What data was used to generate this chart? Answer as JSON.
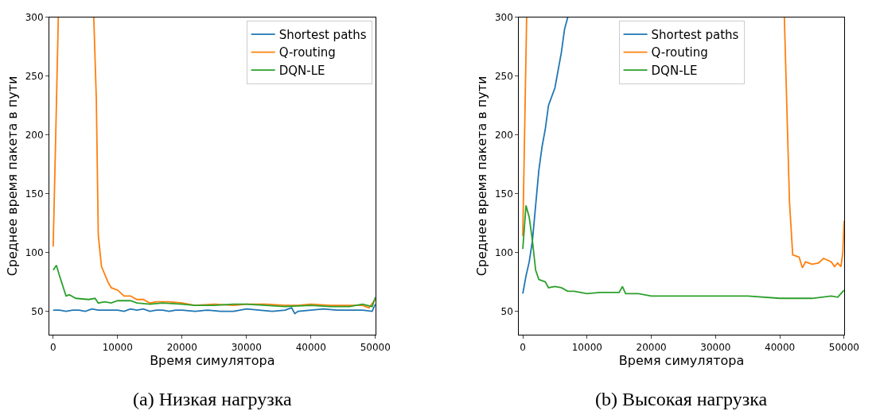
{
  "chart_data": [
    {
      "type": "line",
      "title": "(a) Низкая нагрузка",
      "xlabel": "Время симулятора",
      "ylabel": "Среднее время пакета в пути",
      "xlim": [
        -600,
        50000
      ],
      "ylim": [
        30,
        300
      ],
      "xticks": [
        0,
        10000,
        20000,
        30000,
        40000,
        50000
      ],
      "yticks": [
        50,
        100,
        150,
        200,
        250,
        300
      ],
      "legend": "top right",
      "marker": "none",
      "line_style": "solid",
      "series": [
        {
          "name": "Shortest paths",
          "color": "#1f77b4",
          "x": [
            0,
            1000,
            2000,
            3000,
            4000,
            5000,
            6000,
            7000,
            8000,
            9000,
            10000,
            11000,
            12000,
            13000,
            14000,
            15000,
            16000,
            17000,
            18000,
            19000,
            20000,
            22000,
            24000,
            26000,
            28000,
            30000,
            32000,
            34000,
            36000,
            37000,
            37500,
            38000,
            40000,
            42000,
            44000,
            46000,
            48000,
            49500,
            50000
          ],
          "values": [
            51,
            51,
            50,
            51,
            51,
            50,
            52,
            51,
            51,
            51,
            51,
            50,
            52,
            51,
            52,
            50,
            51,
            51,
            50,
            51,
            51,
            50,
            51,
            50,
            50,
            52,
            51,
            50,
            51,
            53,
            48,
            50,
            51,
            52,
            51,
            51,
            51,
            50,
            56
          ]
        },
        {
          "name": "Q-routing",
          "color": "#ff7f0e",
          "x": [
            0,
            400,
            800,
            3000,
            6300,
            6700,
            7000,
            7500,
            8500,
            9000,
            10000,
            11000,
            12000,
            13000,
            14000,
            15000,
            16000,
            18000,
            20000,
            22000,
            25000,
            28000,
            30000,
            33000,
            36000,
            38000,
            40000,
            43000,
            46000,
            48000,
            49000,
            50000
          ],
          "values": [
            105,
            200,
            300,
            null,
            300,
            230,
            115,
            88,
            75,
            70,
            68,
            63,
            63,
            60,
            60,
            57,
            58,
            58,
            57,
            55,
            56,
            55,
            56,
            56,
            55,
            55,
            56,
            55,
            55,
            55,
            53,
            60
          ]
        },
        {
          "name": "DQN-LE",
          "color": "#2ca02c",
          "x": [
            0,
            500,
            1000,
            2000,
            2500,
            3500,
            5500,
            6500,
            7000,
            8000,
            9000,
            10000,
            12000,
            13000,
            15000,
            17000,
            20000,
            22000,
            25000,
            28000,
            30000,
            33000,
            36000,
            40000,
            43000,
            46000,
            48000,
            49500,
            50000
          ],
          "values": [
            85,
            89,
            80,
            63,
            64,
            61,
            60,
            61,
            57,
            58,
            57,
            59,
            59,
            57,
            56,
            57,
            56,
            55,
            55,
            56,
            56,
            55,
            54,
            55,
            54,
            54,
            56,
            54,
            62
          ]
        }
      ]
    },
    {
      "type": "line",
      "title": "(b) Высокая нагрузка",
      "xlabel": "Время симулятора",
      "ylabel": "Среднее время пакета в пути",
      "xlim": [
        -600,
        50000
      ],
      "ylim": [
        30,
        300
      ],
      "xticks": [
        0,
        10000,
        20000,
        30000,
        40000,
        50000
      ],
      "yticks": [
        50,
        100,
        150,
        200,
        250,
        300
      ],
      "legend": "top",
      "marker": "none",
      "line_style": "solid",
      "series": [
        {
          "name": "Shortest paths",
          "color": "#1f77b4",
          "x": [
            0,
            500,
            1000,
            1500,
            2000,
            2500,
            3000,
            3500,
            4000,
            5000,
            6000,
            6500,
            7000
          ],
          "values": [
            65,
            80,
            92,
            110,
            140,
            170,
            190,
            205,
            225,
            240,
            270,
            290,
            300
          ]
        },
        {
          "name": "Q-routing",
          "color": "#ff7f0e",
          "x": [
            0,
            600,
            20000,
            40700,
            41500,
            42000,
            43000,
            43500,
            44000,
            45000,
            46000,
            46800,
            48000,
            48500,
            49000,
            49500,
            49800,
            50000
          ],
          "values": [
            114,
            300,
            null,
            300,
            143,
            98,
            96,
            87,
            92,
            90,
            91,
            95,
            92,
            88,
            91,
            88,
            100,
            127
          ]
        },
        {
          "name": "DQN-LE",
          "color": "#2ca02c",
          "x": [
            0,
            500,
            1000,
            1500,
            2000,
            2500,
            3500,
            4000,
            5000,
            6000,
            7000,
            8000,
            9000,
            10000,
            12000,
            15000,
            15500,
            16000,
            18000,
            20000,
            25000,
            30000,
            35000,
            40000,
            45000,
            48000,
            49000,
            50000
          ],
          "values": [
            103,
            140,
            130,
            110,
            85,
            77,
            75,
            70,
            71,
            70,
            67,
            67,
            66,
            65,
            66,
            66,
            71,
            65,
            65,
            63,
            63,
            63,
            63,
            61,
            61,
            63,
            62,
            68
          ]
        }
      ]
    }
  ]
}
